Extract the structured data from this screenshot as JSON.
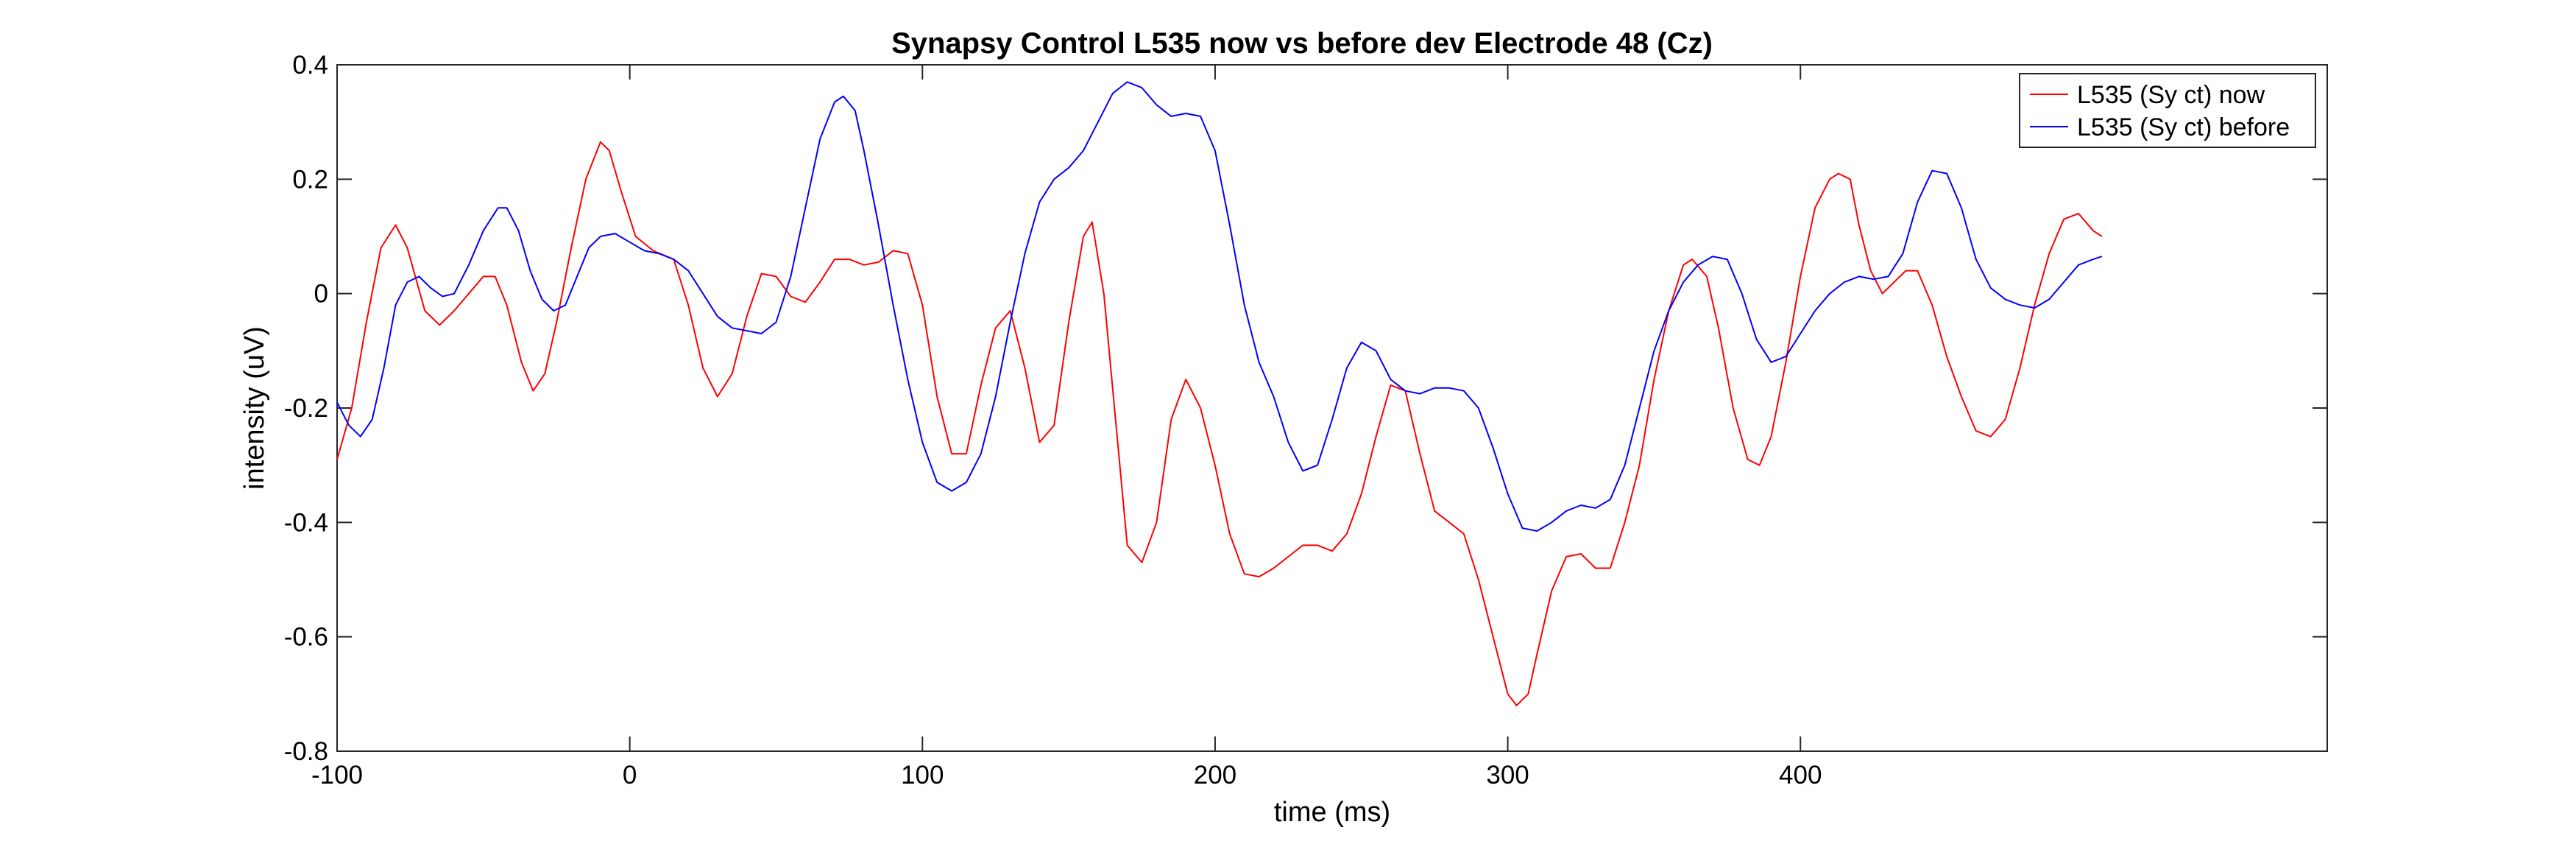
{
  "chart_data": {
    "type": "line",
    "title": "Synapsy Control L535 now vs before dev Electrode 48 (Cz)",
    "xlabel": "time (ms)",
    "ylabel": "intensity (uV)",
    "xlim": [
      -100,
      580
    ],
    "ylim": [
      -0.8,
      0.4
    ],
    "xticks": [
      -100,
      0,
      100,
      200,
      300,
      400
    ],
    "xtick_labels": [
      "-100",
      "0",
      "100",
      "200",
      "300",
      "400"
    ],
    "yticks": [
      -0.8,
      -0.6,
      -0.4,
      -0.2,
      0,
      0.2,
      0.4
    ],
    "ytick_labels": [
      "-0.8",
      "-0.6",
      "-0.4",
      "-0.2",
      "0",
      "0.2",
      "0.4"
    ],
    "grid": false,
    "legend_position": "top-right",
    "series": [
      {
        "name": "L535 (Sy ct) now",
        "color": "#ff0000",
        "points": [
          [
            -100,
            -0.29
          ],
          [
            -95,
            -0.2
          ],
          [
            -90,
            -0.05
          ],
          [
            -85,
            0.08
          ],
          [
            -80,
            0.12
          ],
          [
            -76,
            0.08
          ],
          [
            -70,
            -0.03
          ],
          [
            -65,
            -0.055
          ],
          [
            -60,
            -0.03
          ],
          [
            -55,
            0.0
          ],
          [
            -50,
            0.03
          ],
          [
            -46,
            0.03
          ],
          [
            -42,
            -0.02
          ],
          [
            -37,
            -0.12
          ],
          [
            -33,
            -0.17
          ],
          [
            -29,
            -0.14
          ],
          [
            -25,
            -0.05
          ],
          [
            -20,
            0.08
          ],
          [
            -15,
            0.2
          ],
          [
            -10,
            0.265
          ],
          [
            -7,
            0.25
          ],
          [
            -3,
            0.18
          ],
          [
            2,
            0.1
          ],
          [
            8,
            0.075
          ],
          [
            15,
            0.06
          ],
          [
            20,
            -0.02
          ],
          [
            25,
            -0.13
          ],
          [
            30,
            -0.18
          ],
          [
            35,
            -0.14
          ],
          [
            40,
            -0.04
          ],
          [
            45,
            0.035
          ],
          [
            50,
            0.03
          ],
          [
            55,
            -0.005
          ],
          [
            60,
            -0.015
          ],
          [
            65,
            0.02
          ],
          [
            70,
            0.06
          ],
          [
            75,
            0.06
          ],
          [
            80,
            0.05
          ],
          [
            85,
            0.055
          ],
          [
            90,
            0.075
          ],
          [
            95,
            0.07
          ],
          [
            100,
            -0.02
          ],
          [
            105,
            -0.18
          ],
          [
            110,
            -0.28
          ],
          [
            115,
            -0.28
          ],
          [
            120,
            -0.16
          ],
          [
            125,
            -0.06
          ],
          [
            130,
            -0.03
          ],
          [
            135,
            -0.13
          ],
          [
            140,
            -0.26
          ],
          [
            145,
            -0.23
          ],
          [
            150,
            -0.05
          ],
          [
            155,
            0.1
          ],
          [
            158,
            0.125
          ],
          [
            162,
            0.0
          ],
          [
            166,
            -0.22
          ],
          [
            170,
            -0.44
          ],
          [
            175,
            -0.47
          ],
          [
            180,
            -0.4
          ],
          [
            185,
            -0.22
          ],
          [
            190,
            -0.15
          ],
          [
            195,
            -0.2
          ],
          [
            200,
            -0.3
          ],
          [
            205,
            -0.42
          ],
          [
            210,
            -0.49
          ],
          [
            215,
            -0.495
          ],
          [
            220,
            -0.48
          ],
          [
            225,
            -0.46
          ],
          [
            230,
            -0.44
          ],
          [
            235,
            -0.44
          ],
          [
            240,
            -0.45
          ],
          [
            245,
            -0.42
          ],
          [
            250,
            -0.35
          ],
          [
            255,
            -0.25
          ],
          [
            260,
            -0.16
          ],
          [
            265,
            -0.17
          ],
          [
            270,
            -0.28
          ],
          [
            275,
            -0.38
          ],
          [
            280,
            -0.4
          ],
          [
            285,
            -0.42
          ],
          [
            290,
            -0.5
          ],
          [
            295,
            -0.6
          ],
          [
            300,
            -0.7
          ],
          [
            303,
            -0.72
          ],
          [
            307,
            -0.7
          ],
          [
            310,
            -0.63
          ],
          [
            315,
            -0.52
          ],
          [
            320,
            -0.46
          ],
          [
            325,
            -0.455
          ],
          [
            330,
            -0.48
          ],
          [
            335,
            -0.48
          ],
          [
            340,
            -0.4
          ],
          [
            345,
            -0.3
          ],
          [
            350,
            -0.15
          ],
          [
            355,
            -0.03
          ],
          [
            360,
            0.05
          ],
          [
            363,
            0.06
          ],
          [
            368,
            0.03
          ],
          [
            372,
            -0.06
          ],
          [
            377,
            -0.2
          ],
          [
            382,
            -0.29
          ],
          [
            386,
            -0.3
          ],
          [
            390,
            -0.25
          ],
          [
            395,
            -0.12
          ],
          [
            400,
            0.03
          ],
          [
            405,
            0.15
          ],
          [
            410,
            0.2
          ],
          [
            413,
            0.21
          ],
          [
            417,
            0.2
          ],
          [
            420,
            0.12
          ],
          [
            424,
            0.04
          ],
          [
            428,
            0.0
          ],
          [
            432,
            0.02
          ],
          [
            436,
            0.04
          ],
          [
            440,
            0.04
          ],
          [
            445,
            -0.02
          ],
          [
            450,
            -0.11
          ],
          [
            455,
            -0.18
          ],
          [
            460,
            -0.24
          ],
          [
            465,
            -0.25
          ],
          [
            470,
            -0.22
          ],
          [
            475,
            -0.13
          ],
          [
            480,
            -0.02
          ],
          [
            485,
            0.07
          ],
          [
            490,
            0.13
          ],
          [
            495,
            0.14
          ],
          [
            500,
            0.11
          ],
          [
            503,
            0.1
          ]
        ]
      },
      {
        "name": "L535 (Sy ct) before",
        "color": "#0000ff",
        "points": [
          [
            -100,
            -0.19
          ],
          [
            -96,
            -0.23
          ],
          [
            -92,
            -0.25
          ],
          [
            -88,
            -0.22
          ],
          [
            -84,
            -0.13
          ],
          [
            -80,
            -0.02
          ],
          [
            -76,
            0.02
          ],
          [
            -72,
            0.03
          ],
          [
            -68,
            0.01
          ],
          [
            -64,
            -0.005
          ],
          [
            -60,
            0.0
          ],
          [
            -55,
            0.05
          ],
          [
            -50,
            0.11
          ],
          [
            -45,
            0.15
          ],
          [
            -42,
            0.15
          ],
          [
            -38,
            0.11
          ],
          [
            -34,
            0.04
          ],
          [
            -30,
            -0.01
          ],
          [
            -26,
            -0.03
          ],
          [
            -22,
            -0.02
          ],
          [
            -18,
            0.03
          ],
          [
            -14,
            0.08
          ],
          [
            -10,
            0.1
          ],
          [
            -5,
            0.105
          ],
          [
            0,
            0.09
          ],
          [
            5,
            0.075
          ],
          [
            10,
            0.07
          ],
          [
            15,
            0.06
          ],
          [
            20,
            0.04
          ],
          [
            25,
            0.0
          ],
          [
            30,
            -0.04
          ],
          [
            35,
            -0.06
          ],
          [
            40,
            -0.065
          ],
          [
            45,
            -0.07
          ],
          [
            50,
            -0.05
          ],
          [
            55,
            0.03
          ],
          [
            60,
            0.15
          ],
          [
            65,
            0.27
          ],
          [
            70,
            0.335
          ],
          [
            73,
            0.345
          ],
          [
            77,
            0.32
          ],
          [
            80,
            0.25
          ],
          [
            85,
            0.12
          ],
          [
            90,
            -0.02
          ],
          [
            95,
            -0.15
          ],
          [
            100,
            -0.26
          ],
          [
            105,
            -0.33
          ],
          [
            110,
            -0.345
          ],
          [
            115,
            -0.33
          ],
          [
            120,
            -0.28
          ],
          [
            125,
            -0.18
          ],
          [
            130,
            -0.05
          ],
          [
            135,
            0.07
          ],
          [
            140,
            0.16
          ],
          [
            145,
            0.2
          ],
          [
            150,
            0.22
          ],
          [
            155,
            0.25
          ],
          [
            160,
            0.3
          ],
          [
            165,
            0.35
          ],
          [
            170,
            0.37
          ],
          [
            175,
            0.36
          ],
          [
            180,
            0.33
          ],
          [
            185,
            0.31
          ],
          [
            190,
            0.315
          ],
          [
            195,
            0.31
          ],
          [
            200,
            0.25
          ],
          [
            205,
            0.12
          ],
          [
            210,
            -0.02
          ],
          [
            215,
            -0.12
          ],
          [
            220,
            -0.18
          ],
          [
            225,
            -0.26
          ],
          [
            230,
            -0.31
          ],
          [
            235,
            -0.3
          ],
          [
            240,
            -0.22
          ],
          [
            245,
            -0.13
          ],
          [
            250,
            -0.085
          ],
          [
            255,
            -0.1
          ],
          [
            260,
            -0.15
          ],
          [
            265,
            -0.17
          ],
          [
            270,
            -0.175
          ],
          [
            275,
            -0.165
          ],
          [
            280,
            -0.165
          ],
          [
            285,
            -0.17
          ],
          [
            290,
            -0.2
          ],
          [
            295,
            -0.27
          ],
          [
            300,
            -0.35
          ],
          [
            305,
            -0.41
          ],
          [
            310,
            -0.415
          ],
          [
            315,
            -0.4
          ],
          [
            320,
            -0.38
          ],
          [
            325,
            -0.37
          ],
          [
            330,
            -0.375
          ],
          [
            335,
            -0.36
          ],
          [
            340,
            -0.3
          ],
          [
            345,
            -0.2
          ],
          [
            350,
            -0.1
          ],
          [
            355,
            -0.03
          ],
          [
            360,
            0.02
          ],
          [
            365,
            0.05
          ],
          [
            370,
            0.065
          ],
          [
            375,
            0.06
          ],
          [
            380,
            0.0
          ],
          [
            385,
            -0.08
          ],
          [
            390,
            -0.12
          ],
          [
            395,
            -0.11
          ],
          [
            400,
            -0.07
          ],
          [
            405,
            -0.03
          ],
          [
            410,
            0.0
          ],
          [
            415,
            0.02
          ],
          [
            420,
            0.03
          ],
          [
            425,
            0.025
          ],
          [
            430,
            0.03
          ],
          [
            435,
            0.07
          ],
          [
            440,
            0.16
          ],
          [
            445,
            0.215
          ],
          [
            450,
            0.21
          ],
          [
            455,
            0.15
          ],
          [
            460,
            0.06
          ],
          [
            465,
            0.01
          ],
          [
            470,
            -0.01
          ],
          [
            475,
            -0.02
          ],
          [
            480,
            -0.025
          ],
          [
            485,
            -0.01
          ],
          [
            490,
            0.02
          ],
          [
            495,
            0.05
          ],
          [
            500,
            0.06
          ],
          [
            503,
            0.065
          ]
        ]
      }
    ]
  }
}
